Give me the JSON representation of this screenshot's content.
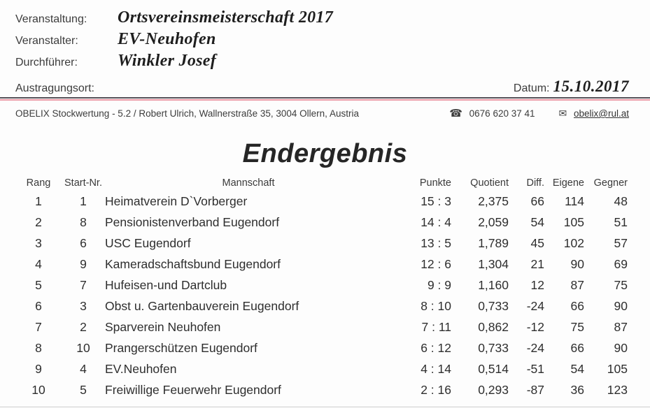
{
  "header": {
    "fields": [
      {
        "label": "Veranstaltung:",
        "value": "Ortsvereinsmeisterschaft 2017"
      },
      {
        "label": "Veranstalter:",
        "value": "EV-Neuhofen"
      },
      {
        "label": "Durchführer:",
        "value": "Winkler Josef"
      }
    ],
    "venue_label": "Austragungsort:",
    "venue_value": "",
    "date_label": "Datum:",
    "date_value": "15.10.2017",
    "software_line": "OBELIX Stockwertung - 5.2 / Robert Ulrich, Wallnerstraße 35, 3004 Ollern, Austria",
    "phone_icon": "☎",
    "phone": "0676 620 37 41",
    "email_icon": "✉",
    "email": "obelix@rul.at"
  },
  "title": "Endergebnis",
  "table": {
    "columns": [
      "Rang",
      "Start-Nr.",
      "Mannschaft",
      "Punkte",
      "Quotient",
      "Diff.",
      "Eigene",
      "Gegner"
    ],
    "rows": [
      [
        "1",
        "1",
        "Heimatverein D`Vorberger",
        "15 : 3",
        "2,375",
        "66",
        "114",
        "48"
      ],
      [
        "2",
        "8",
        "Pensionistenverband Eugendorf",
        "14 : 4",
        "2,059",
        "54",
        "105",
        "51"
      ],
      [
        "3",
        "6",
        "USC Eugendorf",
        "13 : 5",
        "1,789",
        "45",
        "102",
        "57"
      ],
      [
        "4",
        "9",
        "Kameradschaftsbund Eugendorf",
        "12 : 6",
        "1,304",
        "21",
        "90",
        "69"
      ],
      [
        "5",
        "7",
        "Hufeisen-und Dartclub",
        "9 : 9",
        "1,160",
        "12",
        "87",
        "75"
      ],
      [
        "6",
        "3",
        "Obst u. Gartenbauverein Eugendorf",
        "8 : 10",
        "0,733",
        "-24",
        "66",
        "90"
      ],
      [
        "7",
        "2",
        "Sparverein Neuhofen",
        "7 : 11",
        "0,862",
        "-12",
        "75",
        "87"
      ],
      [
        "8",
        "10",
        "Prangerschützen Eugendorf",
        "6 : 12",
        "0,733",
        "-24",
        "66",
        "90"
      ],
      [
        "9",
        "4",
        "EV.Neuhofen",
        "4 : 14",
        "0,514",
        "-51",
        "54",
        "105"
      ],
      [
        "10",
        "5",
        "Freiwillige Feuerwehr Eugendorf",
        "2 : 16",
        "0,293",
        "-87",
        "36",
        "123"
      ]
    ]
  },
  "colors": {
    "rule_dark": "#57535a",
    "rule_red": "#ec9aa6",
    "text": "#2e2e2e"
  }
}
